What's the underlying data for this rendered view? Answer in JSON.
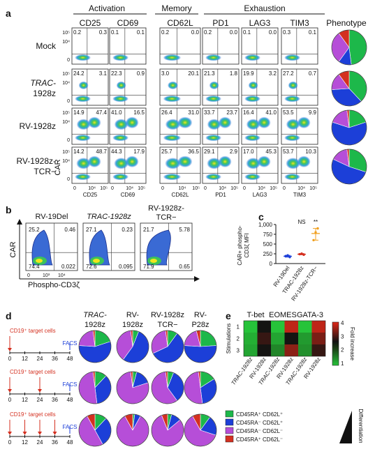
{
  "panels": {
    "a": {
      "label": "a",
      "groups": [
        "Activation",
        "Memory",
        "Exhaustion"
      ],
      "phenotype_header": "Phenotype",
      "columns": [
        "CD25",
        "CD69",
        "CD62L",
        "PD1",
        "LAG3",
        "TIM3"
      ],
      "rows": [
        {
          "name": "Mock",
          "name2": ""
        },
        {
          "name": "TRAC-",
          "name2": "1928z"
        },
        {
          "name": "RV-1928z",
          "name2": ""
        },
        {
          "name": "RV-1928z-",
          "name2": "TCR−"
        }
      ],
      "quadrant_values": [
        [
          [
            "0.2",
            "0.3"
          ],
          [
            "0.1",
            "0.1"
          ],
          [
            "0.2",
            "0.0"
          ],
          [
            "0.2",
            "0.0"
          ],
          [
            "0.1",
            "0.0"
          ],
          [
            "0.3",
            "0.1"
          ]
        ],
        [
          [
            "24.2",
            "3.1"
          ],
          [
            "22.3",
            "0.9"
          ],
          [
            "3.0",
            "20.1"
          ],
          [
            "21.3",
            "1.8"
          ],
          [
            "19.9",
            "3.2"
          ],
          [
            "27.2",
            "0.7"
          ]
        ],
        [
          [
            "14.9",
            "47.4"
          ],
          [
            "41.0",
            "16.5"
          ],
          [
            "26.4",
            "31.0"
          ],
          [
            "33.7",
            "23.7"
          ],
          [
            "16.4",
            "41.0"
          ],
          [
            "53.5",
            "9.9"
          ]
        ],
        [
          [
            "14.2",
            "48.7"
          ],
          [
            "44.3",
            "17.9"
          ],
          [
            "25.7",
            "36.5"
          ],
          [
            "29.1",
            "2.9"
          ],
          [
            "17.0",
            "45.3"
          ],
          [
            "53.7",
            "10.3"
          ]
        ]
      ],
      "y_axis_label": "CAR",
      "y_ticks": [
        "10⁵",
        "10⁴",
        "0"
      ],
      "x_ticks": [
        "0",
        "10⁴",
        "10⁵"
      ]
    },
    "b": {
      "label": "b",
      "titles": [
        "RV-19Del",
        "TRAC-1928z",
        "RV-1928z-TCR−"
      ],
      "quadrants": [
        {
          "ul": "25.2",
          "ur": "0.46",
          "ll": "74.4",
          "lr": "0.022"
        },
        {
          "ul": "27.1",
          "ur": "0.23",
          "ll": "72.6",
          "lr": "0.095"
        },
        {
          "ul": "21.7",
          "ur": "5.78",
          "ll": "71.9",
          "lr": "0.65"
        }
      ],
      "y_axis_label": "CAR",
      "x_axis_label": "Phospho-CD3ζ",
      "x_ticks": [
        "0",
        "10³",
        "10⁴"
      ]
    },
    "c": {
      "label": "c",
      "y_axis_label_1": "CAR+ phospho-",
      "y_axis_label_2": "CD3ζ MFI",
      "categories": [
        "RV-19Del",
        "TRAC-1928z",
        "RV-1928z-TCR−"
      ],
      "significance": [
        "NS",
        "**"
      ]
    },
    "d": {
      "label": "d",
      "columns": [
        "TRAC-",
        "RV-",
        "RV-1928z",
        "RV-"
      ],
      "columns2": [
        "1928z",
        "1928z",
        "TCR−",
        "P28z"
      ],
      "timeline_label": "CD19⁺ target cells",
      "facs_label": "FACS",
      "time_ticks": [
        "0",
        "12",
        "24",
        "36",
        "48"
      ]
    },
    "e": {
      "label": "e",
      "groups": [
        "T-bet",
        "EOMES",
        "GATA-3"
      ],
      "y_axis_label": "Stimulations",
      "row_labels": [
        "1",
        "2",
        "3"
      ],
      "x_labels": [
        "TRAC-1928z",
        "RV-1928z",
        "TRAC-1928z",
        "RV-1928z",
        "TRAC-1928z",
        "RV-1928z"
      ],
      "colorbar_label": "Fold increase",
      "colorbar_ticks": [
        "4",
        "3",
        "2",
        "1"
      ]
    },
    "legend": {
      "items": [
        "CD45RA⁺ CD62L⁺",
        "CD45RA⁻ CD62L⁺",
        "CD45RA⁻ CD62L⁻",
        "CD45RA⁺ CD62L⁻"
      ],
      "colors": [
        "#1db84a",
        "#1c3fd8",
        "#b64ed8",
        "#d43020"
      ],
      "arrow_label": "Differentiation"
    }
  },
  "chart_data": [
    {
      "type": "pie",
      "panel": "a-phenotype",
      "categories": [
        "CD45RA⁺ CD62L⁺",
        "CD45RA⁻ CD62L⁺",
        "CD45RA⁻ CD62L⁻",
        "CD45RA⁺ CD62L⁻"
      ],
      "values_by_row": [
        [
          48,
          12,
          30,
          10
        ],
        [
          38,
          36,
          16,
          10
        ],
        [
          20,
          60,
          18,
          2
        ],
        [
          30,
          52,
          16,
          2
        ]
      ]
    },
    {
      "type": "scatter",
      "panel": "c",
      "categories": [
        "RV-19Del",
        "TRAC-1928z",
        "RV-1928z-TCR−"
      ],
      "series": [
        {
          "values": [
            [
              190,
              210,
              165
            ],
            [
              240,
              255,
              225
            ],
            [
              600,
              800,
              900
            ]
          ]
        }
      ],
      "means": [
        188,
        240,
        770
      ],
      "ylim": [
        0,
        1000
      ],
      "y_ticks": [
        0,
        250,
        500,
        750,
        1000
      ],
      "significance": [
        "NS",
        "**"
      ]
    },
    {
      "type": "pie",
      "panel": "d",
      "categories": [
        "CD45RA⁺ CD62L⁺",
        "CD45RA⁻ CD62L⁺",
        "CD45RA⁻ CD62L⁻",
        "CD45RA⁺ CD62L⁻"
      ],
      "rows": [
        [
          [
            20,
            56,
            22,
            2
          ],
          [
            6,
            54,
            38,
            2
          ],
          [
            10,
            58,
            30,
            2
          ],
          [
            24,
            52,
            20,
            4
          ]
        ],
        [
          [
            12,
            36,
            50,
            2
          ],
          [
            4,
            16,
            78,
            2
          ],
          [
            6,
            34,
            58,
            2
          ],
          [
            16,
            32,
            50,
            2
          ]
        ],
        [
          [
            12,
            30,
            50,
            8
          ],
          [
            2,
            6,
            84,
            8
          ],
          [
            4,
            10,
            80,
            6
          ],
          [
            10,
            20,
            62,
            8
          ]
        ]
      ]
    },
    {
      "type": "heatmap",
      "panel": "e",
      "columns": [
        "TRAC-1928z",
        "RV-1928z",
        "TRAC-1928z",
        "RV-1928z",
        "TRAC-1928z",
        "RV-1928z"
      ],
      "rows": [
        "1",
        "2",
        "3"
      ],
      "values": [
        [
          1.0,
          2.5,
          1.0,
          3.8,
          1.0,
          3.8
        ],
        [
          1.2,
          3.0,
          1.3,
          2.5,
          1.4,
          3.4
        ],
        [
          1.3,
          2.7,
          1.6,
          3.5,
          1.5,
          3.0
        ]
      ],
      "range": [
        1,
        4
      ]
    }
  ]
}
